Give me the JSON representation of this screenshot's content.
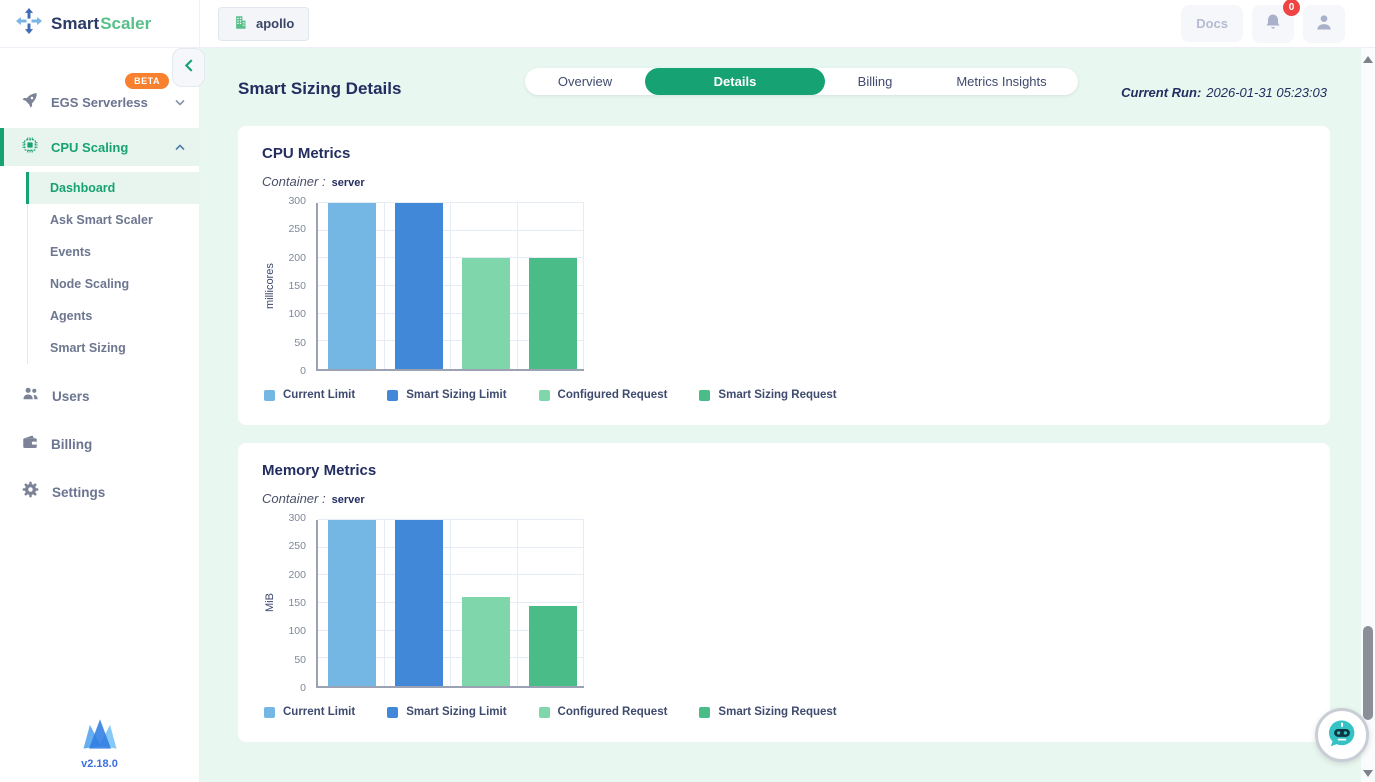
{
  "colors": {
    "accent_green": "#17a273",
    "badge_orange": "#f8812f",
    "notification_red": "#ee4444",
    "chat_teal": "#35c2c5"
  },
  "topbar": {
    "brand_smart": "Smart",
    "brand_scaler": "Scaler",
    "org_button_label": "apollo",
    "docs_label": "Docs",
    "notification_count": "0"
  },
  "sidebar": {
    "egs_label": "EGS Serverless",
    "egs_badge": "BETA",
    "cpu_scaling_label": "CPU Scaling",
    "cpu_subitems": [
      {
        "label": "Dashboard",
        "active": true
      },
      {
        "label": "Ask Smart Scaler"
      },
      {
        "label": "Events"
      },
      {
        "label": "Node Scaling"
      },
      {
        "label": "Agents"
      },
      {
        "label": "Smart Sizing"
      }
    ],
    "users_label": "Users",
    "billing_label": "Billing",
    "settings_label": "Settings",
    "version": "v2.18.0"
  },
  "page": {
    "title": "Smart Sizing Details",
    "tabs": [
      {
        "label": "Overview"
      },
      {
        "label": "Details",
        "active": true
      },
      {
        "label": "Billing"
      },
      {
        "label": "Metrics Insights"
      }
    ],
    "current_run_label": "Current Run:",
    "current_run_value": "2026-01-31 05:23:03"
  },
  "chart_data": [
    {
      "type": "bar",
      "card_title": "CPU Metrics",
      "container_label": "Container :",
      "container_value": "server",
      "ylabel": "millicores",
      "ylim": [
        0,
        300
      ],
      "yticks": [
        0,
        50,
        100,
        150,
        200,
        250,
        300
      ],
      "grid": true,
      "legend_position": "bottom",
      "series": [
        {
          "name": "Current Limit",
          "value": 300,
          "color": "#74b7e4"
        },
        {
          "name": "Smart Sizing Limit",
          "value": 300,
          "color": "#4189d8"
        },
        {
          "name": "Configured Request",
          "value": 200,
          "color": "#80d6ab"
        },
        {
          "name": "Smart Sizing Request",
          "value": 200,
          "color": "#4abc87"
        }
      ]
    },
    {
      "type": "bar",
      "card_title": "Memory Metrics",
      "container_label": "Container :",
      "container_value": "server",
      "ylabel": "MiB",
      "ylim": [
        0,
        300
      ],
      "yticks": [
        0,
        50,
        100,
        150,
        200,
        250,
        300
      ],
      "grid": true,
      "legend_position": "bottom",
      "series": [
        {
          "name": "Current Limit",
          "value": 300,
          "color": "#74b7e4"
        },
        {
          "name": "Smart Sizing Limit",
          "value": 300,
          "color": "#4189d8"
        },
        {
          "name": "Configured Request",
          "value": 160,
          "color": "#80d6ab"
        },
        {
          "name": "Smart Sizing Request",
          "value": 145,
          "color": "#4abc87"
        }
      ]
    }
  ]
}
